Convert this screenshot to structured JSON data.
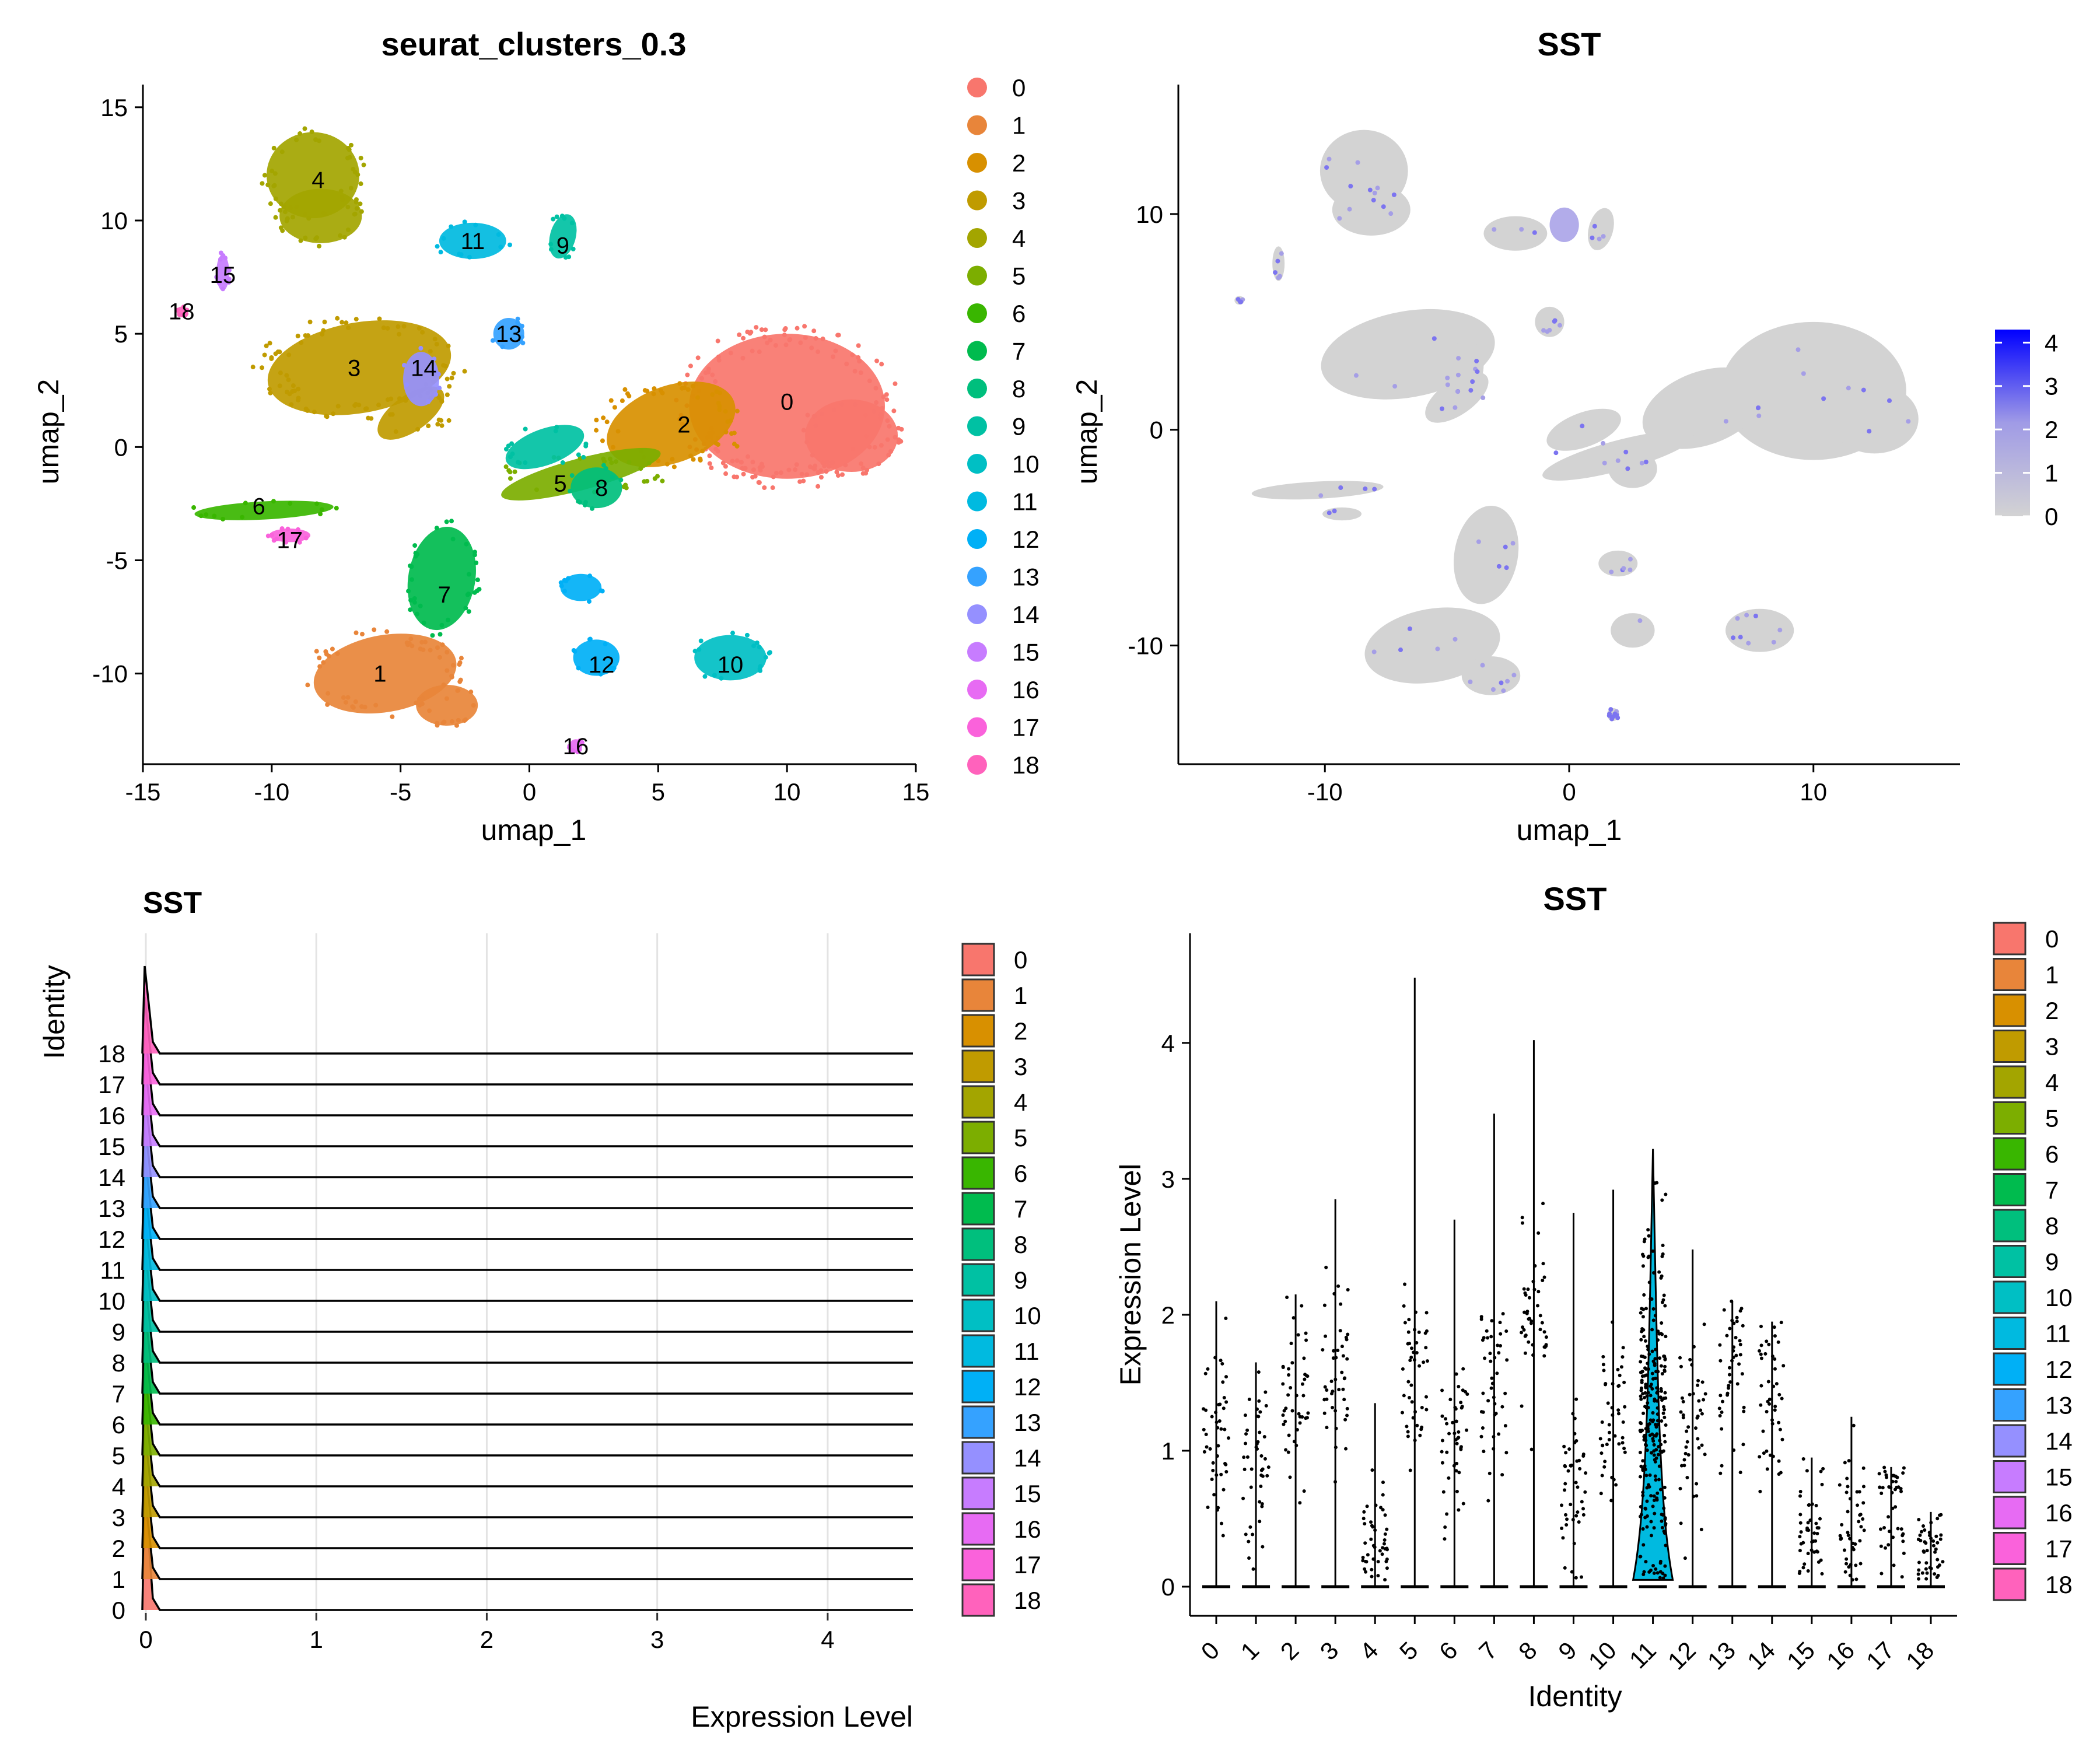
{
  "chart_data": [
    {
      "panel": "umap-clusters",
      "type": "scatter",
      "title": "seurat_clusters_0.3",
      "xlabel": "umap_1",
      "ylabel": "umap_2",
      "xlim": [
        -15,
        15
      ],
      "ylim": [
        -14,
        16
      ],
      "xticks": [
        "-15",
        "-10",
        "-5",
        "0",
        "5",
        "10",
        "15"
      ],
      "yticks": [
        "-10",
        "-5",
        "0",
        "5",
        "10",
        "15"
      ],
      "legend_position": "right",
      "legend": [
        "0",
        "1",
        "2",
        "3",
        "4",
        "5",
        "6",
        "7",
        "8",
        "9",
        "10",
        "11",
        "12",
        "13",
        "14",
        "15",
        "16",
        "17",
        "18"
      ],
      "colors": [
        "#F8766D",
        "#E8853A",
        "#D89000",
        "#C09B00",
        "#A3A500",
        "#7CAE00",
        "#39B600",
        "#00BB4E",
        "#00BF7D",
        "#00C1A3",
        "#00BFC4",
        "#00BAE0",
        "#00B0F6",
        "#35A2FF",
        "#9590FF",
        "#C77CFF",
        "#E76BF3",
        "#FA62DB",
        "#FF62BC"
      ],
      "cluster_labels": [
        {
          "label": "0",
          "x": 10.0,
          "y": 2.0
        },
        {
          "label": "1",
          "x": -5.8,
          "y": -10.0
        },
        {
          "label": "2",
          "x": 6.0,
          "y": 1.0
        },
        {
          "label": "3",
          "x": -6.8,
          "y": 3.5
        },
        {
          "label": "4",
          "x": -8.2,
          "y": 11.8
        },
        {
          "label": "5",
          "x": 1.2,
          "y": -1.6
        },
        {
          "label": "6",
          "x": -10.5,
          "y": -2.6
        },
        {
          "label": "7",
          "x": -3.3,
          "y": -6.5
        },
        {
          "label": "8",
          "x": 2.8,
          "y": -1.8
        },
        {
          "label": "9",
          "x": 1.3,
          "y": 8.9
        },
        {
          "label": "10",
          "x": 7.8,
          "y": -9.6
        },
        {
          "label": "11",
          "x": -2.2,
          "y": 9.1
        },
        {
          "label": "12",
          "x": 2.8,
          "y": -9.6
        },
        {
          "label": "13",
          "x": -0.8,
          "y": 5.0
        },
        {
          "label": "14",
          "x": -4.1,
          "y": 3.5
        },
        {
          "label": "15",
          "x": -11.9,
          "y": 7.6
        },
        {
          "label": "16",
          "x": 1.8,
          "y": -13.2
        },
        {
          "label": "17",
          "x": -9.3,
          "y": -4.1
        },
        {
          "label": "18",
          "x": -13.5,
          "y": 6.0
        }
      ]
    },
    {
      "panel": "umap-feature",
      "type": "scatter",
      "title": "SST",
      "xlabel": "umap_1",
      "ylabel": "umap_2",
      "xlim": [
        -16,
        16
      ],
      "ylim": [
        -15.5,
        16
      ],
      "xticks": [
        "-10",
        "0",
        "10"
      ],
      "yticks": [
        "-10",
        "0",
        "10"
      ],
      "color_scale": {
        "low": "#D3D3D3",
        "high": "#0000FF",
        "min": 0,
        "max": 4.3,
        "ticks": [
          "0",
          "1",
          "2",
          "3",
          "4"
        ]
      },
      "legend_position": "right"
    },
    {
      "panel": "ridge",
      "type": "area",
      "title": "SST",
      "xlabel": "Expression Level",
      "ylabel": "Identity",
      "xlim": [
        0,
        4.5
      ],
      "xticks": [
        "0",
        "1",
        "2",
        "3",
        "4"
      ],
      "categories": [
        "0",
        "1",
        "2",
        "3",
        "4",
        "5",
        "6",
        "7",
        "8",
        "9",
        "10",
        "11",
        "12",
        "13",
        "14",
        "15",
        "16",
        "17",
        "18"
      ],
      "grid": true,
      "legend_position": "right"
    },
    {
      "panel": "violin",
      "type": "scatter",
      "title": "SST",
      "xlabel": "Identity",
      "ylabel": "Expression Level",
      "ylim": [
        0,
        4.6
      ],
      "yticks": [
        "0",
        "1",
        "2",
        "3",
        "4"
      ],
      "categories": [
        "0",
        "1",
        "2",
        "3",
        "4",
        "5",
        "6",
        "7",
        "8",
        "9",
        "10",
        "11",
        "12",
        "13",
        "14",
        "15",
        "16",
        "17",
        "18"
      ],
      "max_values": [
        2.1,
        1.65,
        2.15,
        2.85,
        1.35,
        4.48,
        2.7,
        3.48,
        4.02,
        2.75,
        2.92,
        3.22,
        2.48,
        2.1,
        1.95,
        0.95,
        1.25,
        0.88,
        0.55
      ],
      "typical_values": [
        1.1,
        0.85,
        1.4,
        1.5,
        0.3,
        1.6,
        1.0,
        1.5,
        2.0,
        0.6,
        1.2,
        1.3,
        1.2,
        1.6,
        1.4,
        0.3,
        0.4,
        0.7,
        0.2
      ],
      "legend_position": "right"
    }
  ]
}
